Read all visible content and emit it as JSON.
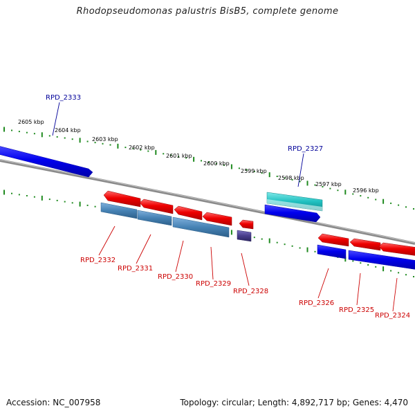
{
  "title": "Rhodopseudomonas palustris BisB5, complete genome",
  "footer": {
    "accession": "Accession: NC_007958",
    "summary": "Topology: circular; Length: 4,892,717 bp; Genes: 4,470"
  },
  "colors": {
    "backbone": "#8a8a8a",
    "tick_dot": "#1f8a1f",
    "forward_gene": "#0000ee",
    "reverse_gene": "#ee0000",
    "steelblue_gene": "#4682b4",
    "cyan_gene": "#20c0c0",
    "darkslate_gene": "#483d8b",
    "label_top": "#000099",
    "label_bottom": "#cc0000"
  },
  "scale_labels": [
    "2605 kbp",
    "2604 kbp",
    "2603 kbp",
    "2602 kbp",
    "2601 kbp",
    "2600 kbp",
    "2599 kbp",
    "2598 kbp",
    "2597 kbp",
    "2596 kbp"
  ],
  "gene_labels": {
    "top": [
      "RPD_2333",
      "RPD_2327"
    ],
    "bottom": [
      "RPD_2332",
      "RPD_2331",
      "RPD_2330",
      "RPD_2329",
      "RPD_2328",
      "RPD_2326",
      "RPD_2325",
      "RPD_2324"
    ]
  }
}
